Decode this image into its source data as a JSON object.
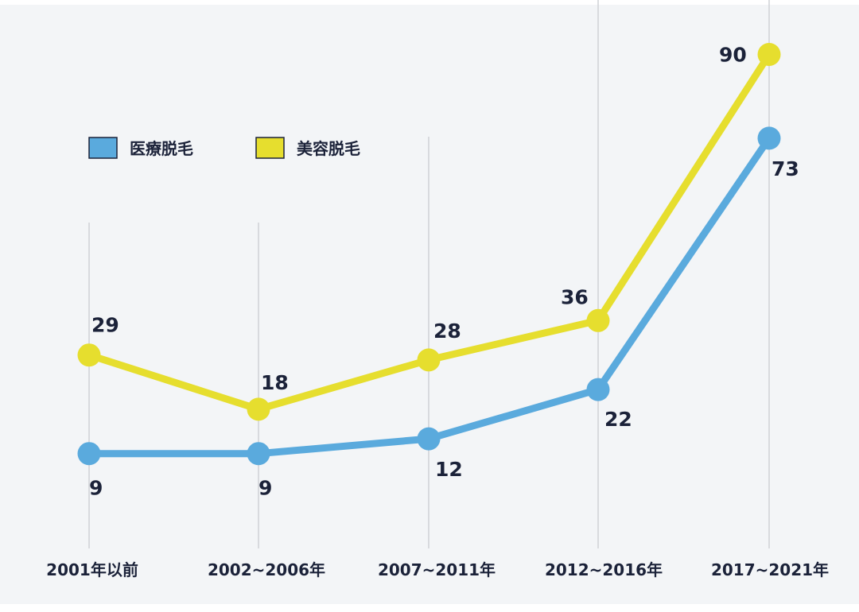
{
  "chart_data": {
    "type": "line",
    "categories": [
      "2001年以前",
      "2002~2006年",
      "2007~2011年",
      "2012~2016年",
      "2017~2021年"
    ],
    "series": [
      {
        "name": "医療脱毛",
        "color": "#5aaadd",
        "values": [
          9,
          9,
          12,
          22,
          73
        ]
      },
      {
        "name": "美容脱毛",
        "color": "#e6de2e",
        "values": [
          29,
          18,
          28,
          36,
          90
        ]
      }
    ],
    "legend_position": "top-left",
    "grid": "vertical",
    "background": "#f3f5f7"
  }
}
